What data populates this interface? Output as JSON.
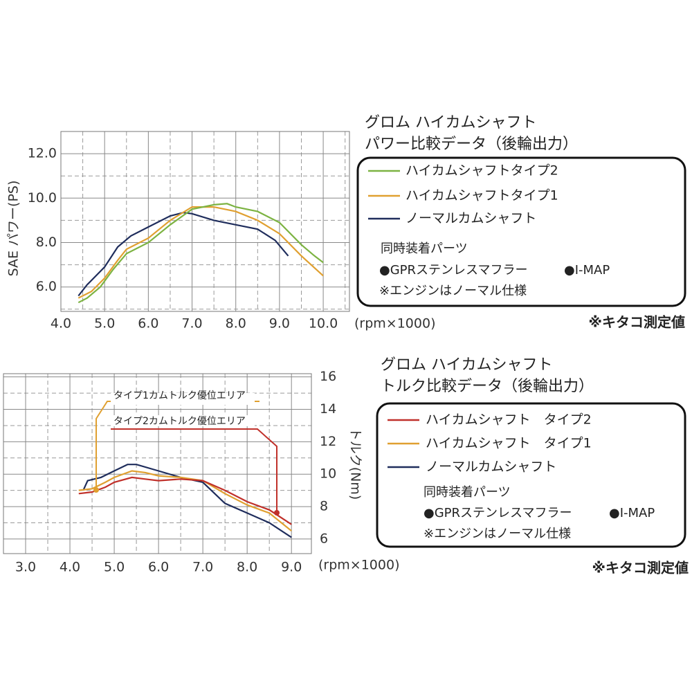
{
  "chart_data": [
    {
      "type": "line",
      "title": "グロム ハイカムシャフト",
      "subtitle": "パワー比較データ（後輪出力）",
      "x_label": "(rpm×1000)",
      "y_label": "SAE パワー(PS)",
      "xlim": [
        4.0,
        10.6
      ],
      "ylim": [
        4.9,
        13.0
      ],
      "xticks": [
        {
          "value": 4,
          "label": "4.0"
        },
        {
          "value": 5,
          "label": "5.0"
        },
        {
          "value": 6,
          "label": "6.0"
        },
        {
          "value": 7,
          "label": "7.0"
        },
        {
          "value": 8,
          "label": "8.0"
        },
        {
          "value": 9,
          "label": "9.0"
        },
        {
          "value": 10,
          "label": "10.0"
        }
      ],
      "yticks": [
        {
          "value": 6,
          "label": "6.0"
        },
        {
          "value": 8,
          "label": "8.0"
        },
        {
          "value": 10,
          "label": "10.0"
        },
        {
          "value": 12,
          "label": "12.0"
        }
      ],
      "grid": true,
      "series": [
        {
          "name": "ハイカムシャフトタイプ2",
          "color": "#7cb342",
          "x": [
            4.4,
            4.6,
            4.9,
            5.2,
            5.5,
            6.0,
            6.5,
            7.0,
            7.5,
            7.8,
            8.0,
            8.5,
            9.0,
            9.5,
            9.8,
            10.0
          ],
          "values": [
            5.3,
            5.5,
            6.0,
            6.8,
            7.5,
            8.0,
            8.8,
            9.5,
            9.7,
            9.75,
            9.6,
            9.4,
            8.9,
            7.9,
            7.4,
            7.1
          ]
        },
        {
          "name": "ハイカムシャフトタイプ1",
          "color": "#e0a030",
          "x": [
            4.4,
            4.7,
            5.0,
            5.3,
            5.5,
            6.0,
            6.5,
            7.0,
            7.5,
            8.0,
            8.5,
            9.0,
            9.5,
            10.0
          ],
          "values": [
            5.5,
            5.8,
            6.4,
            7.2,
            7.7,
            8.2,
            9.0,
            9.6,
            9.6,
            9.4,
            9.0,
            8.4,
            7.4,
            6.5
          ]
        },
        {
          "name": "ノーマルカムシャフト",
          "color": "#1f2d5c",
          "x": [
            4.4,
            4.6,
            5.0,
            5.3,
            5.6,
            6.0,
            6.5,
            6.8,
            7.0,
            7.5,
            8.0,
            8.5,
            8.9,
            9.2
          ],
          "values": [
            5.6,
            6.1,
            6.9,
            7.8,
            8.3,
            8.7,
            9.2,
            9.35,
            9.3,
            9.0,
            8.8,
            8.6,
            8.1,
            7.4
          ]
        }
      ],
      "notes": {
        "heading": "同時装着パーツ",
        "parts": [
          "●GPRステンレスマフラー",
          "●I-MAP"
        ],
        "engine": "※エンジンはノーマル仕様"
      },
      "source": "※キタコ測定値"
    },
    {
      "type": "line",
      "title": "グロム ハイカムシャフト",
      "subtitle": "トルク比較データ（後輪出力）",
      "x_label": "(rpm×1000)",
      "y_label": "トルク(Nm)",
      "xlim": [
        2.5,
        9.45
      ],
      "ylim": [
        5.1,
        16.2
      ],
      "xticks": [
        {
          "value": 3,
          "label": "3.0"
        },
        {
          "value": 4,
          "label": "4.0"
        },
        {
          "value": 5,
          "label": "5.0"
        },
        {
          "value": 6,
          "label": "6.0"
        },
        {
          "value": 7,
          "label": "7.0"
        },
        {
          "value": 8,
          "label": "8.0"
        },
        {
          "value": 9,
          "label": "9.0"
        }
      ],
      "yticks": [
        6,
        8,
        10,
        12,
        14,
        16
      ],
      "grid": true,
      "series": [
        {
          "name": "ハイカムシャフト　タイプ2",
          "color": "#c0302a",
          "x": [
            4.2,
            4.5,
            4.8,
            5.0,
            5.4,
            5.7,
            6.0,
            6.5,
            7.0,
            7.5,
            8.0,
            8.5,
            9.0
          ],
          "values": [
            8.8,
            8.9,
            9.2,
            9.5,
            9.8,
            9.7,
            9.6,
            9.7,
            9.6,
            9.0,
            8.3,
            7.8,
            6.9
          ]
        },
        {
          "name": "ハイカムシャフト　タイプ1",
          "color": "#e0a030",
          "x": [
            4.2,
            4.5,
            4.8,
            5.0,
            5.4,
            5.7,
            6.0,
            6.5,
            7.0,
            7.5,
            8.0,
            8.5,
            9.0
          ],
          "values": [
            9.0,
            9.1,
            9.5,
            9.8,
            10.2,
            10.1,
            9.9,
            9.8,
            9.6,
            8.8,
            8.1,
            7.6,
            6.5
          ]
        },
        {
          "name": "ノーマルカムシャフト",
          "color": "#1f2d5c",
          "x": [
            4.3,
            4.4,
            4.7,
            5.0,
            5.3,
            5.5,
            6.0,
            6.5,
            7.0,
            7.5,
            8.0,
            8.5,
            9.0
          ],
          "values": [
            9.0,
            9.6,
            9.8,
            10.2,
            10.6,
            10.6,
            10.2,
            9.8,
            9.5,
            8.2,
            7.6,
            7.0,
            6.1
          ]
        }
      ],
      "annotations": [
        {
          "text": "タイプ1カムトルク優位エリア",
          "color": "#e0a030"
        },
        {
          "text": "タイプ2カムトルク優位エリア",
          "color": "#c0302a"
        }
      ],
      "notes": {
        "heading": "同時装着パーツ",
        "parts": [
          "●GPRステンレスマフラー",
          "●I-MAP"
        ],
        "engine": "※エンジンはノーマル仕様"
      },
      "source": "※キタコ測定値"
    }
  ]
}
